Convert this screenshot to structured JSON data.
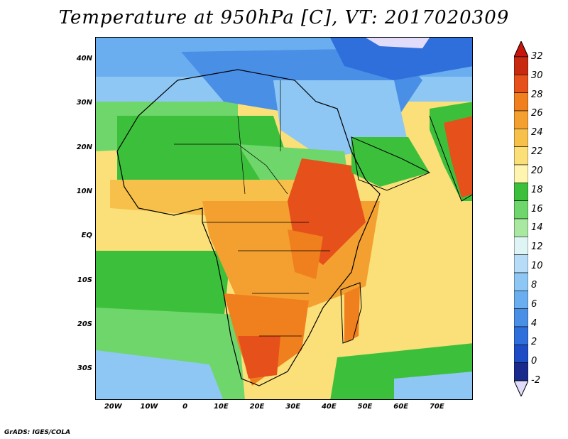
{
  "title": "Temperature at 950hPa [C], VT: 2017020309",
  "credit": "GrADS: IGES/COLA",
  "map": {
    "lon_range": [
      -25,
      80
    ],
    "lat_range": [
      -37,
      45
    ],
    "lat_ticks": [
      {
        "value": 40,
        "label": "40N"
      },
      {
        "value": 30,
        "label": "30N"
      },
      {
        "value": 20,
        "label": "20N"
      },
      {
        "value": 10,
        "label": "10N"
      },
      {
        "value": 0,
        "label": "EQ"
      },
      {
        "value": -10,
        "label": "10S"
      },
      {
        "value": -20,
        "label": "20S"
      },
      {
        "value": -30,
        "label": "30S"
      }
    ],
    "lon_ticks": [
      {
        "value": -20,
        "label": "20W"
      },
      {
        "value": -10,
        "label": "10W"
      },
      {
        "value": 0,
        "label": "0"
      },
      {
        "value": 10,
        "label": "10E"
      },
      {
        "value": 20,
        "label": "20E"
      },
      {
        "value": 30,
        "label": "30E"
      },
      {
        "value": 40,
        "label": "40E"
      },
      {
        "value": 50,
        "label": "50E"
      },
      {
        "value": 60,
        "label": "60E"
      },
      {
        "value": 70,
        "label": "70E"
      }
    ]
  },
  "colorbar": {
    "levels": [
      "-2",
      "0",
      "2",
      "4",
      "6",
      "8",
      "10",
      "12",
      "14",
      "16",
      "18",
      "20",
      "22",
      "24",
      "26",
      "28",
      "30",
      "32"
    ],
    "colors": [
      "#1a2a8c",
      "#1e4cc4",
      "#2f6fdc",
      "#4a8fe6",
      "#6aaef0",
      "#8ec7f4",
      "#b6dcf7",
      "#dff4f4",
      "#a8e8a0",
      "#6ed66a",
      "#3cc03c",
      "#fff5b0",
      "#fbe07a",
      "#f6c04a",
      "#f3a030",
      "#f07f1e",
      "#e6501a",
      "#c82a10"
    ],
    "under_color": "#e1dcfa",
    "over_color": "#c8140a"
  }
}
